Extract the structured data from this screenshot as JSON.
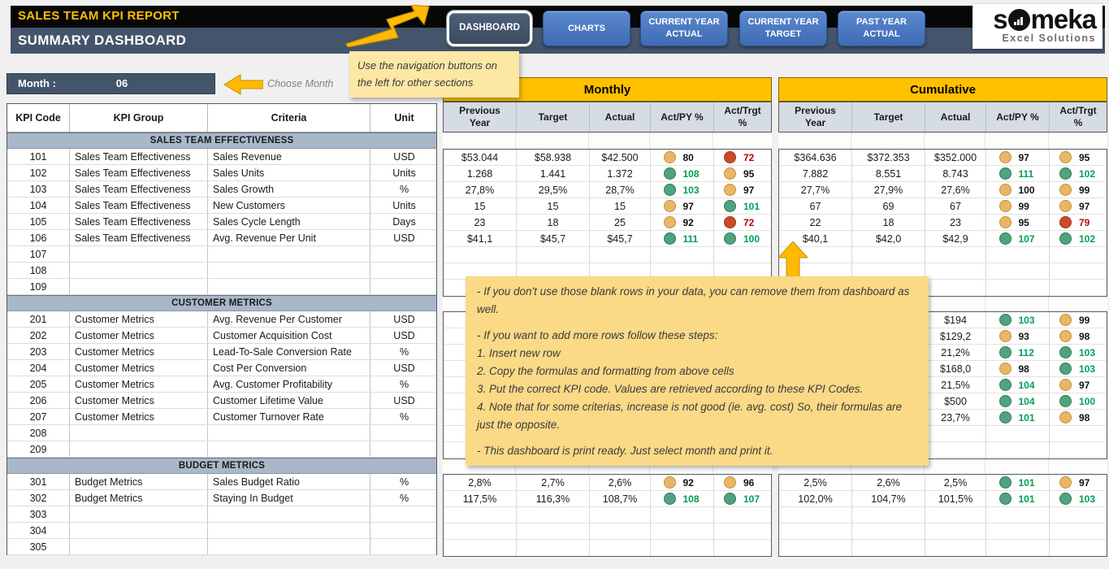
{
  "header": {
    "title": "SALES TEAM KPI REPORT",
    "subtitle": "SUMMARY DASHBOARD",
    "nav": [
      {
        "label": "DASHBOARD",
        "active": true
      },
      {
        "label": "CHARTS",
        "active": false
      },
      {
        "label": "CURRENT YEAR ACTUAL",
        "active": false
      },
      {
        "label": "CURRENT YEAR TARGET",
        "active": false
      },
      {
        "label": "PAST YEAR ACTUAL",
        "active": false
      }
    ],
    "logo": {
      "prefix": "s",
      "suffix": "meka",
      "tagline": "Excel Solutions"
    }
  },
  "month": {
    "label": "Month :",
    "value": "06",
    "hint": "Choose Month"
  },
  "notes": {
    "nav_note": "Use the navigation buttons on the left for other sections",
    "main_note_lines": [
      "- If you don't use those blank rows in your data, you can remove them from dashboard as well.",
      "",
      "- If you want to add more rows follow these steps:",
      "1. Insert new row",
      "2. Copy the formulas and formatting from above cells",
      "3. Put the correct KPI code. Values are retrieved according to these KPI Codes.",
      "4. Note that for some criterias, increase is not good (ie. avg. cost) So, their formulas are just the opposite.",
      "",
      "- This dashboard is print ready. Just select month and print it."
    ]
  },
  "colors": {
    "accent_gold": "#FFC000",
    "slate": "#44546A",
    "column_header_bg": "#D6DCE4",
    "section_header_bg": "#A9B8C9",
    "dot_green": "#4FA37E",
    "dot_amber": "#E9B666",
    "dot_red": "#CB4B28",
    "num_green": "#00A152",
    "num_red": "#C00000"
  },
  "table": {
    "columns": [
      "KPI Code",
      "KPI Group",
      "Criteria",
      "Unit"
    ],
    "panels": [
      "Monthly",
      "Cumulative"
    ],
    "value_columns": [
      "Previous Year",
      "Target",
      "Actual",
      "Act/PY %",
      "Act/Trgt %"
    ],
    "sections": [
      {
        "title": "SALES TEAM EFFECTIVENESS",
        "rows": [
          {
            "code": "101",
            "group": "Sales Team Effectiveness",
            "criteria": "Sales Revenue",
            "unit": "USD",
            "monthly": {
              "py": "$53.044",
              "target": "$58.938",
              "actual": "$42.500",
              "act_py": {
                "v": "80",
                "s": "amber"
              },
              "act_trgt": {
                "v": "72",
                "s": "red"
              }
            },
            "cumulative": {
              "py": "$364.636",
              "target": "$372.353",
              "actual": "$352.000",
              "act_py": {
                "v": "97",
                "s": "amber"
              },
              "act_trgt": {
                "v": "95",
                "s": "amber"
              }
            }
          },
          {
            "code": "102",
            "group": "Sales Team Effectiveness",
            "criteria": "Sales Units",
            "unit": "Units",
            "monthly": {
              "py": "1.268",
              "target": "1.441",
              "actual": "1.372",
              "act_py": {
                "v": "108",
                "s": "green"
              },
              "act_trgt": {
                "v": "95",
                "s": "amber"
              }
            },
            "cumulative": {
              "py": "7.882",
              "target": "8.551",
              "actual": "8.743",
              "act_py": {
                "v": "111",
                "s": "green"
              },
              "act_trgt": {
                "v": "102",
                "s": "green"
              }
            }
          },
          {
            "code": "103",
            "group": "Sales Team Effectiveness",
            "criteria": "Sales Growth",
            "unit": "%",
            "monthly": {
              "py": "27,8%",
              "target": "29,5%",
              "actual": "28,7%",
              "act_py": {
                "v": "103",
                "s": "green"
              },
              "act_trgt": {
                "v": "97",
                "s": "amber"
              }
            },
            "cumulative": {
              "py": "27,7%",
              "target": "27,9%",
              "actual": "27,6%",
              "act_py": {
                "v": "100",
                "s": "amber"
              },
              "act_trgt": {
                "v": "99",
                "s": "amber"
              }
            }
          },
          {
            "code": "104",
            "group": "Sales Team Effectiveness",
            "criteria": "New Customers",
            "unit": "Units",
            "monthly": {
              "py": "15",
              "target": "15",
              "actual": "15",
              "act_py": {
                "v": "97",
                "s": "amber"
              },
              "act_trgt": {
                "v": "101",
                "s": "green"
              }
            },
            "cumulative": {
              "py": "67",
              "target": "69",
              "actual": "67",
              "act_py": {
                "v": "99",
                "s": "amber"
              },
              "act_trgt": {
                "v": "97",
                "s": "amber"
              }
            }
          },
          {
            "code": "105",
            "group": "Sales Team Effectiveness",
            "criteria": "Sales Cycle Length",
            "unit": "Days",
            "monthly": {
              "py": "23",
              "target": "18",
              "actual": "25",
              "act_py": {
                "v": "92",
                "s": "amber"
              },
              "act_trgt": {
                "v": "72",
                "s": "red"
              }
            },
            "cumulative": {
              "py": "22",
              "target": "18",
              "actual": "23",
              "act_py": {
                "v": "95",
                "s": "amber"
              },
              "act_trgt": {
                "v": "79",
                "s": "red"
              }
            }
          },
          {
            "code": "106",
            "group": "Sales Team Effectiveness",
            "criteria": "Avg. Revenue Per Unit",
            "unit": "USD",
            "monthly": {
              "py": "$41,1",
              "target": "$45,7",
              "actual": "$45,7",
              "act_py": {
                "v": "111",
                "s": "green"
              },
              "act_trgt": {
                "v": "100",
                "s": "green"
              }
            },
            "cumulative": {
              "py": "$40,1",
              "target": "$42,0",
              "actual": "$42,9",
              "act_py": {
                "v": "107",
                "s": "green"
              },
              "act_trgt": {
                "v": "102",
                "s": "green"
              }
            }
          }
        ],
        "blanks": [
          "107",
          "108",
          "109"
        ]
      },
      {
        "title": "CUSTOMER METRICS",
        "rows": [
          {
            "code": "201",
            "group": "Customer Metrics",
            "criteria": "Avg. Revenue Per Customer",
            "unit": "USD",
            "monthly": {
              "py": "",
              "target": "",
              "actual": "",
              "act_py": {
                "v": "",
                "s": "none"
              },
              "act_trgt": {
                "v": "",
                "s": "none"
              }
            },
            "cumulative": {
              "py": "",
              "target": "",
              "actual": "$194",
              "act_py": {
                "v": "103",
                "s": "green"
              },
              "act_trgt": {
                "v": "99",
                "s": "amber"
              }
            }
          },
          {
            "code": "202",
            "group": "Customer Metrics",
            "criteria": "Customer Acquisition Cost",
            "unit": "USD",
            "monthly": {
              "py": "",
              "target": "",
              "actual": "",
              "act_py": {
                "v": "",
                "s": "none"
              },
              "act_trgt": {
                "v": "",
                "s": "none"
              }
            },
            "cumulative": {
              "py": "",
              "target": "",
              "actual": "$129,2",
              "act_py": {
                "v": "93",
                "s": "amber"
              },
              "act_trgt": {
                "v": "98",
                "s": "amber"
              }
            }
          },
          {
            "code": "203",
            "group": "Customer Metrics",
            "criteria": "Lead-To-Sale Conversion Rate",
            "unit": "%",
            "monthly": {
              "py": "",
              "target": "",
              "actual": "",
              "act_py": {
                "v": "",
                "s": "none"
              },
              "act_trgt": {
                "v": "",
                "s": "none"
              }
            },
            "cumulative": {
              "py": "",
              "target": "",
              "actual": "21,2%",
              "act_py": {
                "v": "112",
                "s": "green"
              },
              "act_trgt": {
                "v": "103",
                "s": "green"
              }
            }
          },
          {
            "code": "204",
            "group": "Customer Metrics",
            "criteria": "Cost Per Conversion",
            "unit": "USD",
            "monthly": {
              "py": "",
              "target": "",
              "actual": "",
              "act_py": {
                "v": "",
                "s": "none"
              },
              "act_trgt": {
                "v": "",
                "s": "none"
              }
            },
            "cumulative": {
              "py": "",
              "target": "",
              "actual": "$168,0",
              "act_py": {
                "v": "98",
                "s": "amber"
              },
              "act_trgt": {
                "v": "103",
                "s": "green"
              }
            }
          },
          {
            "code": "205",
            "group": "Customer Metrics",
            "criteria": "Avg. Customer Profitability",
            "unit": "%",
            "monthly": {
              "py": "",
              "target": "",
              "actual": "",
              "act_py": {
                "v": "",
                "s": "none"
              },
              "act_trgt": {
                "v": "",
                "s": "none"
              }
            },
            "cumulative": {
              "py": "",
              "target": "",
              "actual": "21,5%",
              "act_py": {
                "v": "104",
                "s": "green"
              },
              "act_trgt": {
                "v": "97",
                "s": "amber"
              }
            }
          },
          {
            "code": "206",
            "group": "Customer Metrics",
            "criteria": "Customer Lifetime Value",
            "unit": "USD",
            "monthly": {
              "py": "",
              "target": "",
              "actual": "",
              "act_py": {
                "v": "",
                "s": "none"
              },
              "act_trgt": {
                "v": "",
                "s": "none"
              }
            },
            "cumulative": {
              "py": "",
              "target": "",
              "actual": "$500",
              "act_py": {
                "v": "104",
                "s": "green"
              },
              "act_trgt": {
                "v": "100",
                "s": "green"
              }
            }
          },
          {
            "code": "207",
            "group": "Customer Metrics",
            "criteria": "Customer Turnover Rate",
            "unit": "%",
            "monthly": {
              "py": "",
              "target": "",
              "actual": "",
              "act_py": {
                "v": "",
                "s": "none"
              },
              "act_trgt": {
                "v": "",
                "s": "none"
              }
            },
            "cumulative": {
              "py": "",
              "target": "",
              "actual": "23,7%",
              "act_py": {
                "v": "101",
                "s": "green"
              },
              "act_trgt": {
                "v": "98",
                "s": "amber"
              }
            }
          }
        ],
        "blanks": [
          "208",
          "209"
        ]
      },
      {
        "title": "BUDGET METRICS",
        "rows": [
          {
            "code": "301",
            "group": "Budget Metrics",
            "criteria": "Sales Budget Ratio",
            "unit": "%",
            "monthly": {
              "py": "2,8%",
              "target": "2,7%",
              "actual": "2,6%",
              "act_py": {
                "v": "92",
                "s": "amber"
              },
              "act_trgt": {
                "v": "96",
                "s": "amber"
              }
            },
            "cumulative": {
              "py": "2,5%",
              "target": "2,6%",
              "actual": "2,5%",
              "act_py": {
                "v": "101",
                "s": "green"
              },
              "act_trgt": {
                "v": "97",
                "s": "amber"
              }
            }
          },
          {
            "code": "302",
            "group": "Budget Metrics",
            "criteria": "Staying In Budget",
            "unit": "%",
            "monthly": {
              "py": "117,5%",
              "target": "116,3%",
              "actual": "108,7%",
              "act_py": {
                "v": "108",
                "s": "green"
              },
              "act_trgt": {
                "v": "107",
                "s": "green"
              }
            },
            "cumulative": {
              "py": "102,0%",
              "target": "104,7%",
              "actual": "101,5%",
              "act_py": {
                "v": "101",
                "s": "green"
              },
              "act_trgt": {
                "v": "103",
                "s": "green"
              }
            }
          }
        ],
        "blanks": [
          "303",
          "304",
          "305"
        ]
      }
    ]
  }
}
